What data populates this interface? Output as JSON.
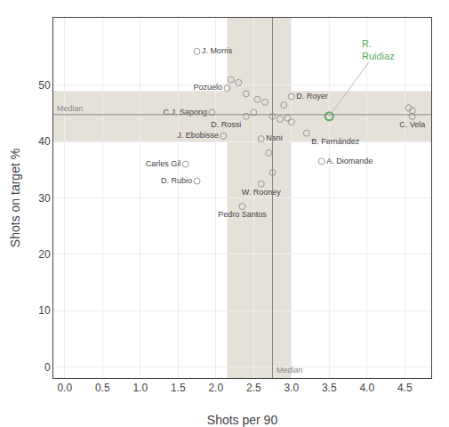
{
  "chart_data": {
    "type": "scatter",
    "x_label": "Shots per 90",
    "y_label": "Shots on target %",
    "xlim": [
      -0.15,
      4.85
    ],
    "ylim": [
      -2,
      62
    ],
    "xticks": [
      {
        "value": 0.0,
        "label": "0.0"
      },
      0.5,
      {
        "value": 1.0,
        "label": "1.0"
      },
      1.5,
      {
        "value": 2.0,
        "label": "2.0"
      },
      2.5,
      {
        "value": 3.0,
        "label": "3.0"
      },
      3.5,
      {
        "value": 4.0,
        "label": "4.0"
      },
      4.5
    ],
    "yticks": [
      0,
      10,
      20,
      30,
      40,
      50
    ],
    "grid": true,
    "series": [
      {
        "x": [
          2.2,
          2.3,
          2.4,
          2.55,
          2.65,
          2.5,
          2.75,
          2.85,
          2.95,
          3.0,
          2.9,
          2.7,
          2.75,
          4.55,
          4.6
        ],
        "y": [
          51.0,
          50.5,
          48.5,
          47.5,
          47.0,
          45.2,
          44.5,
          44.0,
          44.2,
          43.5,
          46.5,
          38.0,
          34.5,
          46.0,
          45.5
        ],
        "color": "#999999",
        "marker": "circle-open"
      },
      {
        "x": [
          1.75,
          2.15,
          1.95,
          2.4,
          2.1,
          2.6,
          1.6,
          1.75,
          2.6,
          2.35,
          3.0,
          3.2,
          3.4,
          4.6
        ],
        "y": [
          56,
          49.5,
          45.2,
          44.5,
          41.0,
          40.5,
          36.0,
          33.0,
          32.5,
          28.5,
          48.0,
          41.5,
          36.5,
          44.5
        ],
        "labels": [
          "J. Morris",
          "Pozuelo",
          "C.J. Sapong",
          "D. Rossi",
          "J. Ebobisse",
          "Nani",
          "Carles Gil",
          "D. Rubio",
          "W. Rooney",
          "Pedro Santos",
          "D. Royer",
          "B. Fernández",
          "A. Diomande",
          "C. Vela"
        ],
        "color": "#999999",
        "marker": "circle-open"
      },
      {
        "x": [
          3.5
        ],
        "y": [
          44.5
        ],
        "annotation": "R.\nRuidiaz",
        "color": "#5aaa5a",
        "marker": "circle-open"
      }
    ],
    "median_x": 2.75,
    "median_y": 44.8,
    "median_band_x": [
      2.15,
      3.0
    ],
    "median_band_y": [
      40.0,
      49.0
    ],
    "median_label": "Median",
    "median_band_color": "#e5e0d8",
    "median_line_color": "#888888",
    "arrow_color": "#bbbbbb"
  }
}
